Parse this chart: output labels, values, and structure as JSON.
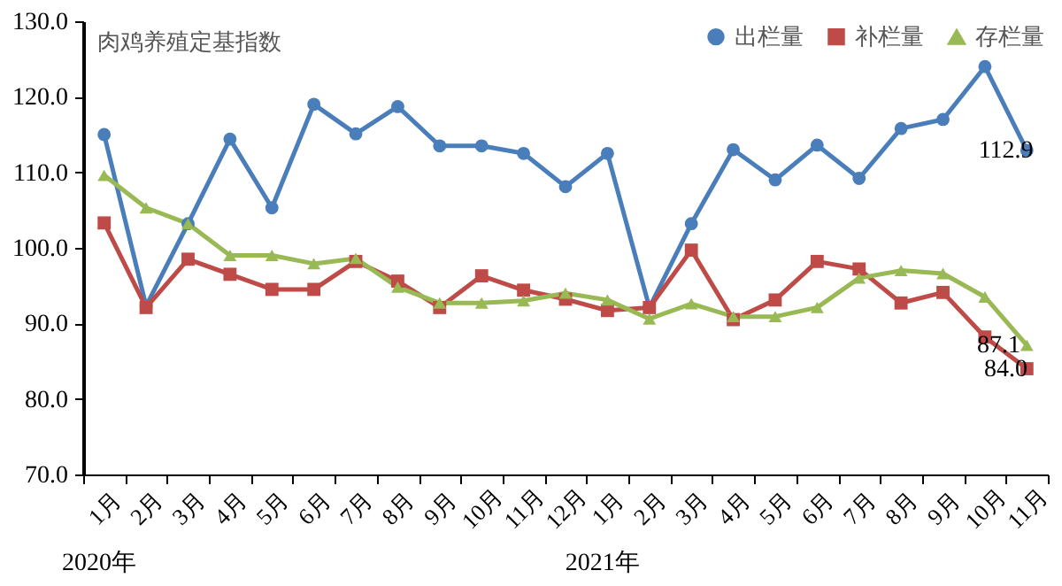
{
  "chart_data": {
    "type": "line",
    "title": "肉鸡养殖定基指数",
    "categories": [
      "1月",
      "2月",
      "3月",
      "4月",
      "5月",
      "6月",
      "7月",
      "8月",
      "9月",
      "10月",
      "11月",
      "12月",
      "1月",
      "2月",
      "3月",
      "4月",
      "5月",
      "6月",
      "7月",
      "8月",
      "9月",
      "10月",
      "11月"
    ],
    "series": [
      {
        "name": "出栏量",
        "color": "#4a7ebb",
        "marker": "circle",
        "values": [
          115.0,
          92.3,
          103.2,
          114.4,
          105.3,
          119.0,
          115.1,
          118.7,
          113.5,
          113.5,
          112.5,
          108.1,
          112.5,
          92.1,
          103.2,
          113.0,
          109.0,
          113.6,
          109.2,
          115.8,
          117.0,
          124.0,
          112.9
        ],
        "value_labels": [
          null,
          null,
          null,
          null,
          null,
          null,
          null,
          null,
          null,
          null,
          null,
          null,
          null,
          null,
          null,
          null,
          null,
          null,
          null,
          null,
          null,
          null,
          "112.9"
        ]
      },
      {
        "name": "补栏量",
        "color": "#be4b48",
        "marker": "square",
        "values": [
          103.3,
          92.1,
          98.5,
          96.5,
          94.5,
          94.5,
          98.2,
          95.6,
          92.1,
          96.3,
          94.4,
          93.2,
          91.7,
          92.1,
          99.7,
          90.5,
          93.1,
          98.2,
          97.2,
          92.7,
          94.1,
          88.2,
          84.0
        ],
        "value_labels": [
          null,
          null,
          null,
          null,
          null,
          null,
          null,
          null,
          null,
          null,
          null,
          null,
          null,
          null,
          null,
          null,
          null,
          null,
          null,
          null,
          null,
          null,
          "84.0"
        ]
      },
      {
        "name": "存栏量",
        "color": "#98b954",
        "marker": "triangle",
        "values": [
          109.6,
          105.3,
          103.2,
          99.0,
          99.0,
          97.9,
          98.6,
          94.8,
          92.7,
          92.7,
          93.0,
          94.0,
          93.1,
          90.6,
          92.6,
          90.9,
          90.9,
          92.1,
          96.0,
          97.0,
          96.6,
          93.5,
          87.1
        ],
        "value_labels": [
          null,
          null,
          null,
          null,
          null,
          null,
          null,
          null,
          null,
          null,
          null,
          null,
          null,
          null,
          null,
          null,
          null,
          null,
          null,
          null,
          null,
          null,
          "87.1"
        ]
      }
    ],
    "ylim": [
      70,
      130
    ],
    "yticks": [
      {
        "value": 70,
        "label": "70.0"
      },
      {
        "value": 80,
        "label": "80.0"
      },
      {
        "value": 90,
        "label": "90.0"
      },
      {
        "value": 100,
        "label": "100.0"
      },
      {
        "value": 110,
        "label": "110.0"
      },
      {
        "value": 120,
        "label": "120.0"
      },
      {
        "value": 130,
        "label": "130.0"
      }
    ],
    "legend": "top right",
    "grid": false,
    "annotations": [
      "2020年",
      "2021年"
    ]
  }
}
